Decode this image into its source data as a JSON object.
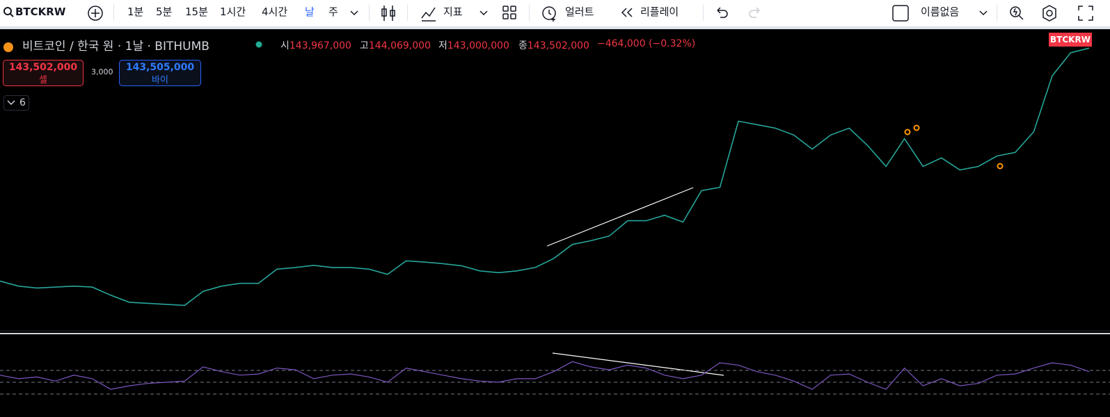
{
  "toolbar": {
    "symbol": "BTCKRW",
    "intervals": [
      "1분",
      "5분",
      "15분",
      "1시간",
      "4시간",
      "날",
      "주"
    ],
    "indicators": "지표",
    "alert": "얼러트",
    "replay": "리플레이",
    "layout_name": "이름없음"
  },
  "legend": {
    "title": "비트코인 / 한국 원 · 1날 · BITHUMB",
    "ohlc": [
      {
        "label": "시",
        "value": "143,967,000"
      },
      {
        "label": "고",
        "value": "144,069,000"
      },
      {
        "label": "저",
        "value": "143,000,000"
      },
      {
        "label": "종",
        "value": "143,502,000"
      }
    ],
    "change": "−464,000 (−0.32%)"
  },
  "trade": {
    "sell_price": "143,502,000",
    "sell": "셀",
    "spread": "3,000",
    "buy_price": "143,505,000",
    "buy": "바이"
  },
  "indicator_count": "6",
  "price_tag": "BTCKRW",
  "chart_data": [
    {
      "type": "line",
      "log_scale": true,
      "color": "#26a69a",
      "ylim": [
        30400000,
        158000000
      ],
      "values": [
        40200000,
        39100000,
        38700000,
        38900000,
        39100000,
        38900000,
        37200000,
        35800000,
        35600000,
        35400000,
        35200000,
        38000000,
        39100000,
        39700000,
        39700000,
        42900000,
        43300000,
        43800000,
        43300000,
        43300000,
        42900000,
        41700000,
        44900000,
        44600000,
        44200000,
        43700000,
        42500000,
        42100000,
        42500000,
        43300000,
        45500000,
        49100000,
        50100000,
        51400000,
        55900000,
        55900000,
        57600000,
        55500000,
        65900000,
        67100000,
        96300000,
        94500000,
        92700000,
        89300000,
        82700000,
        89300000,
        92700000,
        84300000,
        75200000,
        87500000,
        75200000,
        78800000,
        73800000,
        75200000,
        79600000,
        81200000,
        90900000,
        123300000,
        140000000,
        143502000
      ]
    },
    {
      "type": "line",
      "color": "#7e57c2",
      "ylim": [
        0,
        100
      ],
      "bands": [
        70,
        50,
        30
      ],
      "values": [
        62,
        56,
        59,
        52,
        62,
        56,
        38,
        44,
        48,
        50,
        52,
        76,
        68,
        62,
        64,
        74,
        71,
        56,
        62,
        64,
        59,
        50,
        74,
        68,
        62,
        56,
        52,
        50,
        56,
        56,
        68,
        85,
        76,
        71,
        79,
        74,
        62,
        56,
        62,
        83,
        79,
        68,
        62,
        52,
        38,
        62,
        64,
        50,
        38,
        74,
        44,
        56,
        44,
        48,
        62,
        64,
        74,
        83,
        79,
        68
      ]
    }
  ]
}
